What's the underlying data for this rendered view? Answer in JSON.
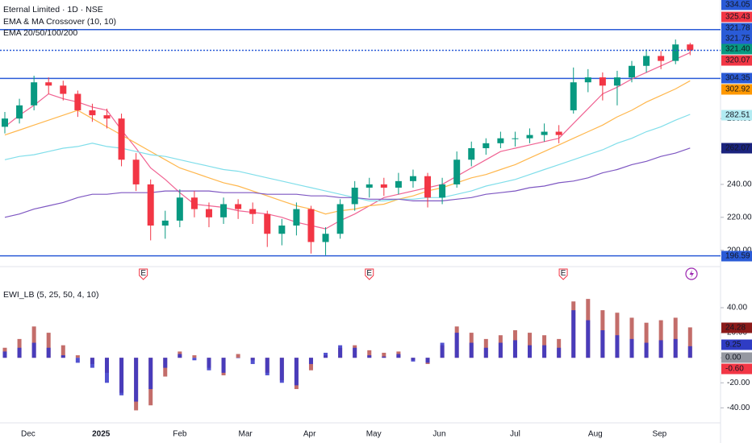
{
  "chart_data": [
    {
      "type": "candlestick",
      "title": "Eternal Limited · 1D · NSE",
      "indicators": [
        "EMA & MA Crossover (10, 10)",
        "EMA 20/50/100/200"
      ],
      "up_color": "#089981",
      "down_color": "#f23645",
      "open": [
        275,
        280,
        288,
        302,
        300,
        295,
        285,
        282,
        280,
        255,
        240,
        215,
        218,
        232,
        225,
        220,
        228,
        225,
        222,
        210,
        215,
        225,
        205,
        210,
        228,
        238,
        240,
        238,
        242,
        245,
        232,
        240,
        255,
        262,
        265,
        268,
        268,
        270,
        272,
        285,
        302,
        305,
        300,
        305,
        312,
        318,
        315,
        325
      ],
      "high": [
        284,
        292,
        306,
        305,
        303,
        297,
        289,
        286,
        283,
        259,
        243,
        224,
        237,
        236,
        229,
        232,
        231,
        229,
        224,
        219,
        229,
        227,
        214,
        231,
        242,
        244,
        244,
        247,
        249,
        247,
        244,
        260,
        266,
        268,
        272,
        272,
        274,
        277,
        276,
        311,
        310,
        308,
        309,
        315,
        322,
        321,
        328,
        326
      ],
      "low": [
        271,
        277,
        285,
        295,
        291,
        281,
        278,
        274,
        251,
        236,
        206,
        207,
        214,
        220,
        214,
        216,
        219,
        216,
        202,
        203,
        209,
        198,
        197,
        207,
        224,
        232,
        233,
        234,
        238,
        226,
        228,
        238,
        251,
        258,
        262,
        263,
        265,
        266,
        265,
        283,
        296,
        291,
        288,
        302,
        308,
        310,
        313,
        318.5
      ],
      "close": [
        280,
        288,
        302,
        300,
        295,
        285,
        282,
        280,
        255,
        240,
        215,
        218,
        232,
        225,
        220,
        228,
        225,
        222,
        210,
        215,
        225,
        205,
        210,
        228,
        238,
        240,
        238,
        242,
        245,
        232,
        240,
        255,
        262,
        265,
        268,
        268,
        270,
        272,
        270,
        302,
        305,
        300,
        305,
        312,
        318,
        315,
        325,
        321.4
      ],
      "series": [
        {
          "color": "#f06292",
          "values": [
            275,
            282,
            288,
            295,
            292,
            290,
            287,
            285,
            273,
            262,
            250,
            243,
            235,
            228,
            227,
            226,
            224,
            223,
            222,
            220,
            217,
            215,
            213,
            218,
            222,
            227,
            232,
            234,
            236,
            238,
            240,
            245,
            250,
            255,
            260,
            262,
            264,
            266,
            268,
            277,
            286,
            295,
            299,
            304,
            308,
            312,
            316,
            320.07
          ]
        },
        {
          "color": "#ffb74d",
          "values": [
            270,
            273,
            276,
            279,
            282,
            285,
            280,
            275,
            270,
            265,
            260,
            255,
            250,
            247,
            244,
            241,
            239,
            236,
            233,
            230,
            227,
            225,
            222,
            224,
            225,
            227,
            228,
            231,
            233,
            236,
            238,
            241,
            244,
            246,
            249,
            252,
            256,
            260,
            264,
            268,
            272,
            276,
            281,
            285,
            290,
            294,
            298,
            302.92
          ]
        },
        {
          "color": "#80deea",
          "values": [
            255,
            257,
            258,
            260,
            262,
            263,
            265,
            263,
            262,
            260,
            258,
            257,
            255,
            253,
            251,
            249,
            248,
            246,
            244,
            242,
            240,
            238,
            236,
            234,
            232,
            230,
            230,
            231,
            231,
            232,
            232,
            234,
            236,
            239,
            241,
            243,
            246,
            249,
            252,
            255,
            258,
            261,
            265,
            268,
            272,
            275,
            279,
            282.51
          ]
        },
        {
          "color": "#7e57c2",
          "values": [
            220,
            222,
            225,
            227,
            229,
            232,
            234,
            234,
            235,
            235,
            235,
            236,
            236,
            236,
            236,
            235,
            235,
            235,
            234,
            234,
            234,
            233,
            233,
            232,
            232,
            231,
            231,
            231,
            230,
            230,
            230,
            231,
            232,
            234,
            235,
            236,
            238,
            239,
            241,
            242,
            244,
            247,
            249,
            252,
            254,
            257,
            259,
            262.07
          ]
        }
      ],
      "levels": [
        334.05,
        304.35,
        196.59
      ],
      "level_color": "#2a5bd7",
      "price_tags": [
        {
          "value": 334.05,
          "label": "334.05",
          "color": "#2a5bd7"
        },
        {
          "value": 325.43,
          "label": "325.43",
          "color": "#f23645"
        },
        {
          "value": 321.78,
          "label": "321.78",
          "color": "#2a5bd7"
        },
        {
          "value": 321.75,
          "label": "321.75",
          "color": "#2a5bd7"
        },
        {
          "value": 321.4,
          "label": "321.40",
          "color": "#089981"
        },
        {
          "value": 320.07,
          "label": "320.07",
          "color": "#f23645"
        },
        {
          "value": 304.35,
          "label": "304.35",
          "color": "#2a5bd7"
        },
        {
          "value": 302.92,
          "label": "302.92",
          "color": "#ff9800"
        },
        {
          "value": 282.51,
          "label": "282.51",
          "color": "#b2ebf2"
        },
        {
          "value": 262.07,
          "label": "262.07",
          "color": "#1a237e"
        },
        {
          "value": 196.59,
          "label": "196.59",
          "color": "#2a5bd7"
        }
      ],
      "events": [
        {
          "label": "E",
          "x": 9.5
        },
        {
          "label": "E",
          "x": 25
        },
        {
          "label": "E",
          "x": 38.3
        }
      ],
      "ylim": [
        193,
        352
      ],
      "yticks": [
        {
          "value": 200,
          "label": "200.00"
        },
        {
          "value": 220,
          "label": "220.00"
        },
        {
          "value": 240,
          "label": "240.00"
        },
        {
          "value": 260,
          "label": "260.00"
        },
        {
          "value": 280,
          "label": "280.00"
        }
      ],
      "xticks": [
        {
          "value": 1.6,
          "label": "Dec"
        },
        {
          "value": 6.6,
          "label": "2025"
        },
        {
          "value": 12,
          "label": "Feb"
        },
        {
          "value": 16.5,
          "label": "Mar"
        },
        {
          "value": 20.9,
          "label": "Apr"
        },
        {
          "value": 25.3,
          "label": "May"
        },
        {
          "value": 29.8,
          "label": "Jun"
        },
        {
          "value": 35,
          "label": "Jul"
        },
        {
          "value": 40.5,
          "label": "Aug"
        },
        {
          "value": 44.9,
          "label": "Sep"
        }
      ]
    },
    {
      "type": "bar",
      "title": "EWI_LB (5, 25, 50, 4, 10)",
      "series": [
        {
          "color": "#b85450",
          "values": [
            8,
            15,
            25,
            20,
            10,
            2,
            -5,
            -12,
            -28,
            -42,
            -38,
            -15,
            5,
            2,
            -8,
            -14,
            3,
            -2,
            -12,
            -18,
            -25,
            -10,
            2,
            8,
            10,
            6,
            4,
            5,
            -2,
            -5,
            10,
            25,
            20,
            15,
            18,
            22,
            20,
            18,
            15,
            45,
            47,
            38,
            36,
            32,
            28,
            30,
            32,
            24.28
          ]
        },
        {
          "color": "#3434c8",
          "values": [
            5,
            8,
            12,
            8,
            2,
            -4,
            -8,
            -20,
            -30,
            -35,
            -25,
            -8,
            3,
            -2,
            -10,
            -12,
            0,
            -5,
            -14,
            -20,
            -22,
            -5,
            4,
            10,
            8,
            2,
            1,
            3,
            -3,
            -4,
            12,
            20,
            12,
            8,
            12,
            14,
            10,
            10,
            8,
            38,
            30,
            22,
            18,
            15,
            12,
            14,
            15,
            9.25
          ]
        }
      ],
      "value_tags": [
        {
          "value": 24.28,
          "label": "24.28",
          "color": "#8b1a1a"
        },
        {
          "value": 9.25,
          "label": "9.25",
          "color": "#2f3cc4"
        },
        {
          "value": 0,
          "label": "0.00",
          "color": "#9598a1"
        },
        {
          "value": -0.6,
          "label": "-0.60",
          "color": "#f23645"
        }
      ],
      "ylim": [
        -52,
        60.6
      ],
      "yticks": [
        {
          "value": 40,
          "label": "40.00"
        },
        {
          "value": 20,
          "label": "20.00"
        },
        {
          "value": 0,
          "label": "0.00"
        },
        {
          "value": -20,
          "label": "-20.00"
        },
        {
          "value": -40,
          "label": "-40.00"
        }
      ]
    }
  ]
}
